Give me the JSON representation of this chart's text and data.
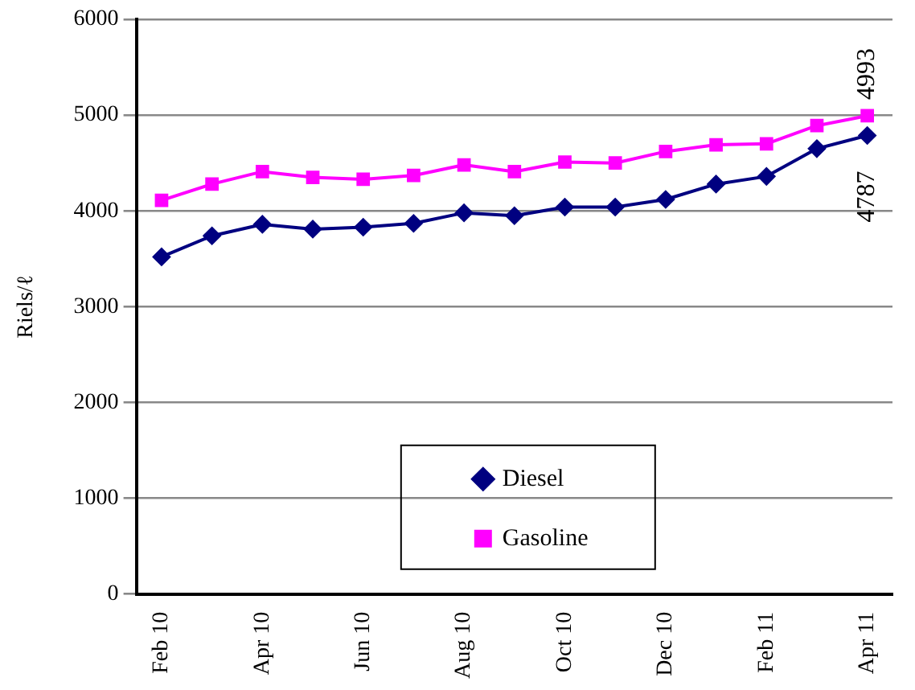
{
  "chart_data": {
    "type": "line",
    "ylabel": "Riels/ℓ",
    "categories": [
      "Feb 10",
      null,
      "Apr 10",
      null,
      "Jun 10",
      null,
      "Aug 10",
      null,
      "Oct 10",
      null,
      "Dec 10",
      null,
      "Feb 11",
      null,
      "Apr 11"
    ],
    "series": [
      {
        "name": "Diesel",
        "color": "#000080",
        "marker": "diamond",
        "values": [
          3520,
          3740,
          3860,
          3810,
          3830,
          3870,
          3980,
          3950,
          4040,
          4040,
          4120,
          4280,
          4360,
          4650,
          4787
        ],
        "value_labels": [
          null,
          null,
          null,
          null,
          null,
          null,
          null,
          null,
          null,
          null,
          null,
          null,
          null,
          null,
          "4787"
        ]
      },
      {
        "name": "Gasoline",
        "color": "#ff00ff",
        "marker": "square",
        "values": [
          4110,
          4280,
          4410,
          4350,
          4330,
          4370,
          4480,
          4410,
          4510,
          4500,
          4620,
          4690,
          4700,
          4890,
          4993
        ],
        "value_labels": [
          null,
          null,
          null,
          null,
          null,
          null,
          null,
          null,
          null,
          null,
          null,
          null,
          null,
          null,
          "4993"
        ]
      }
    ],
    "ylim": [
      0,
      6000
    ],
    "yticks": [
      0,
      1000,
      2000,
      3000,
      4000,
      5000,
      6000
    ],
    "grid": "y",
    "legend": "bottom"
  }
}
